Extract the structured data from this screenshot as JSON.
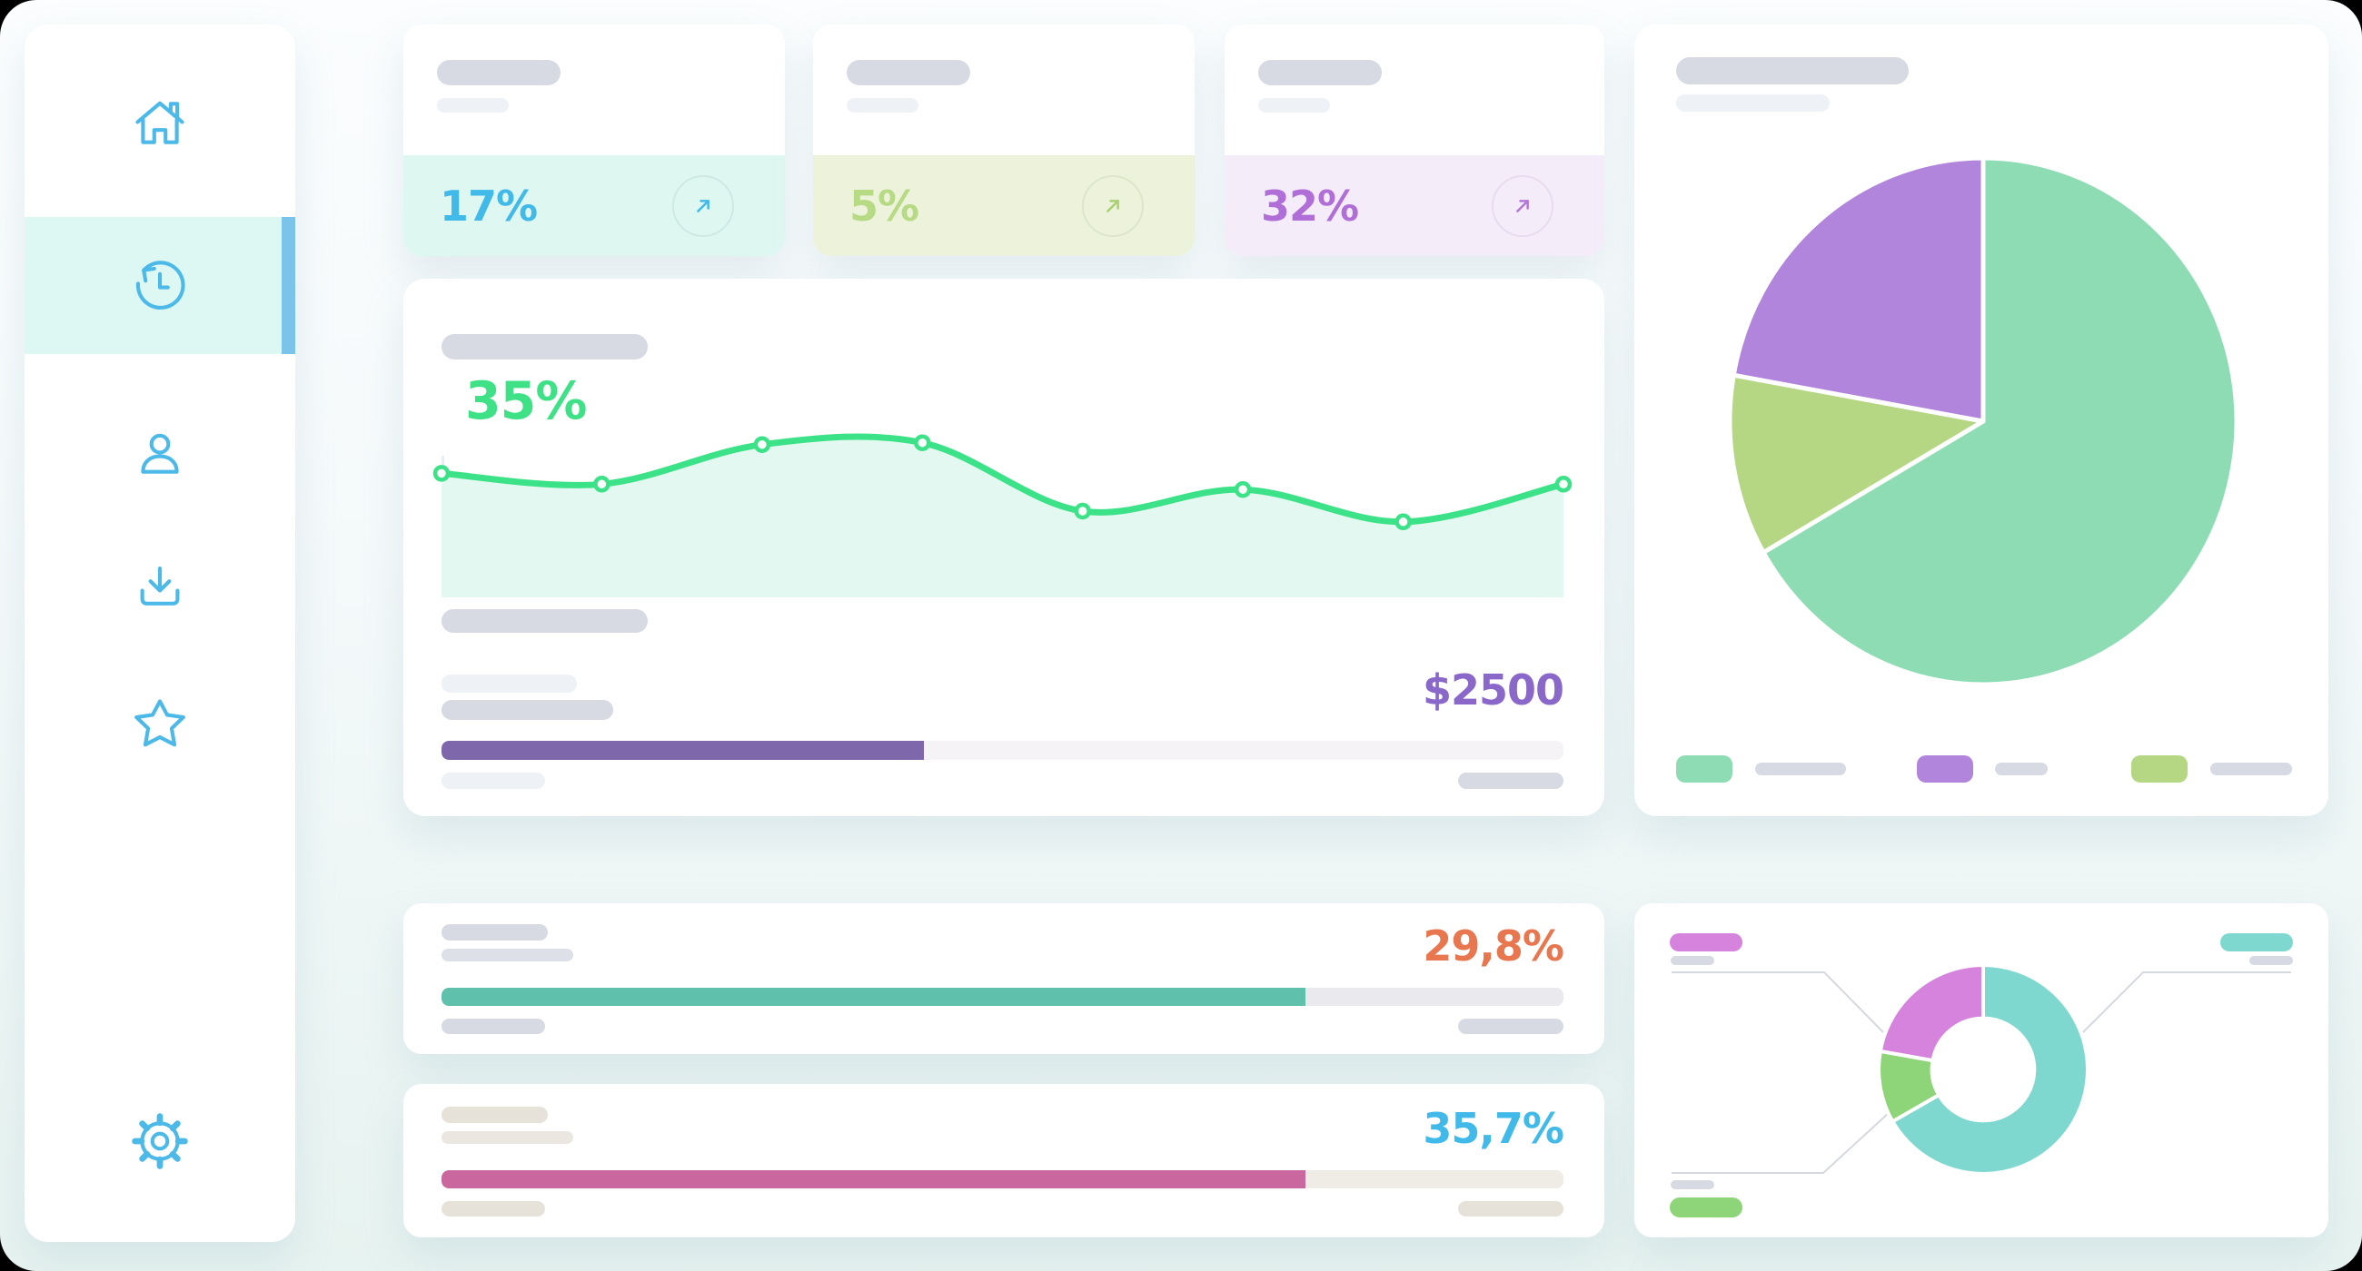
{
  "sidebar": {
    "accent": "#4cb9e8",
    "active_bg": "#ddf7f2",
    "active_indicator": "#7ac4eb",
    "items": [
      {
        "id": "home",
        "active": false
      },
      {
        "id": "history",
        "active": true
      },
      {
        "id": "profile",
        "active": false
      },
      {
        "id": "downloads",
        "active": false
      },
      {
        "id": "favorites",
        "active": false
      },
      {
        "id": "settings",
        "active": false
      }
    ]
  },
  "stats": [
    {
      "value": "17%",
      "accent": "#41b9e9",
      "panel_bg": "#def7f1",
      "trend_icon": "arrow-up-right"
    },
    {
      "value": "5%",
      "accent": "#b7da85",
      "panel_bg": "#edf3db",
      "trend_icon": "arrow-up-right"
    },
    {
      "value": "32%",
      "accent": "#b06fd6",
      "panel_bg": "#f5ecfa",
      "trend_icon": "arrow-up-right"
    }
  ],
  "main_chart": {
    "headline": "35%",
    "amount": "$2500"
  },
  "progress_cards": [
    {
      "value": "29,8%",
      "accent": "#e8764f"
    },
    {
      "value": "35,7%",
      "accent": "#41b9e9"
    }
  ],
  "chart_data": [
    {
      "type": "line",
      "title": "35%",
      "x": [
        0,
        1,
        2,
        3,
        4,
        5,
        6,
        7
      ],
      "values": [
        0.69,
        0.63,
        0.85,
        0.86,
        0.48,
        0.6,
        0.42,
        0.63
      ],
      "note": "unlabeled skeleton sparkline, values normalized 0-1, 8 evenly spaced points",
      "line_color": "#3ce287",
      "area_color": "#e3f8f0",
      "point_color": "#3ce287",
      "grid": false,
      "legend": false
    },
    {
      "type": "bar",
      "label": "$2500",
      "percent": 43,
      "color": "#7e68ab",
      "track": "#f6f3f6"
    },
    {
      "type": "pie",
      "slices": [
        {
          "label": "segment-green",
          "value": 66.7,
          "color": "#8edcb4"
        },
        {
          "label": "segment-olive",
          "value": 11.1,
          "color": "#b5d784"
        },
        {
          "label": "segment-purple",
          "value": 22.2,
          "color": "#b285dc"
        }
      ],
      "legend_position": "bottom",
      "legend_swatch_colors": [
        "#8edcb4",
        "#b285dc",
        "#b5d784"
      ]
    },
    {
      "type": "donut",
      "slices": [
        {
          "label": "segment-teal",
          "value": 66.7,
          "color": "#7fd8cf"
        },
        {
          "label": "segment-green",
          "value": 11.1,
          "color": "#8ed478"
        },
        {
          "label": "segment-magenta",
          "value": 22.2,
          "color": "#d683dd"
        }
      ],
      "callout_colors": {
        "top_left": "#d683dd",
        "top_right": "#7fd8cf",
        "bottom_left": "#8ed478"
      }
    },
    {
      "type": "bar",
      "label": "29,8%",
      "percent": 77,
      "color": "#5fc0ac",
      "track": "#e9e9ee"
    },
    {
      "type": "bar",
      "label": "35,7%",
      "percent": 77,
      "color": "#c9679e",
      "track": "#eeece5"
    }
  ]
}
